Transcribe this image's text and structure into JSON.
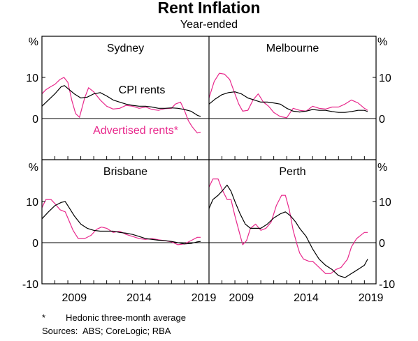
{
  "title": "Rent Inflation",
  "subtitle": "Year-ended",
  "footnote": {
    "marker": "*",
    "text": "Hedonic three-month average"
  },
  "sources": {
    "label": "Sources:",
    "text": "ABS; CoreLogic; RBA"
  },
  "colors": {
    "cpi": "#000000",
    "advertised": "#e8288c"
  },
  "chart_data": {
    "type": "line",
    "x_tick_labels": [
      "2009",
      "2014",
      "2019"
    ],
    "x_range": [
      2007.0,
      2019.9
    ],
    "y_unit": "%",
    "y_range": [
      -10,
      20
    ],
    "y_tick_labels": [
      "10",
      "0",
      "-10"
    ],
    "series_labels": {
      "cpi": "CPI rents",
      "advertised": "Advertised rents*"
    },
    "panels": [
      {
        "name": "Sydney",
        "cpi": {
          "x": [
            2007.0,
            2007.5,
            2008.0,
            2008.5,
            2008.75,
            2009.0,
            2009.5,
            2010.0,
            2010.5,
            2011.0,
            2011.5,
            2012.0,
            2012.5,
            2013.0,
            2013.5,
            2014.0,
            2014.5,
            2015.0,
            2015.5,
            2016.0,
            2016.5,
            2017.0,
            2017.5,
            2018.0,
            2018.5,
            2019.0,
            2019.25
          ],
          "y": [
            3.0,
            4.5,
            6.0,
            7.8,
            8.0,
            7.3,
            6.0,
            5.0,
            5.2,
            6.0,
            6.3,
            5.5,
            4.5,
            4.0,
            3.5,
            3.2,
            3.0,
            3.0,
            2.8,
            2.5,
            2.5,
            2.6,
            2.5,
            2.2,
            1.8,
            0.8,
            0.5
          ]
        },
        "advertised": {
          "x": [
            2007.0,
            2007.3,
            2007.7,
            2008.0,
            2008.4,
            2008.7,
            2009.0,
            2009.3,
            2009.6,
            2009.9,
            2010.3,
            2010.6,
            2011.0,
            2011.5,
            2012.0,
            2012.5,
            2013.0,
            2013.5,
            2014.0,
            2014.5,
            2015.0,
            2015.5,
            2016.0,
            2016.5,
            2017.0,
            2017.3,
            2017.7,
            2018.0,
            2018.3,
            2018.6,
            2019.0,
            2019.25
          ],
          "y": [
            6.0,
            7.0,
            7.8,
            8.3,
            9.5,
            10.0,
            8.8,
            4.5,
            1.2,
            0.3,
            5.0,
            7.5,
            6.5,
            4.5,
            3.0,
            2.3,
            2.5,
            3.2,
            3.0,
            2.5,
            2.8,
            2.2,
            2.0,
            2.4,
            2.5,
            3.5,
            4.0,
            2.0,
            -0.5,
            -2.0,
            -3.5,
            -3.3
          ]
        }
      },
      {
        "name": "Melbourne",
        "cpi": {
          "x": [
            2007.0,
            2007.5,
            2008.0,
            2008.5,
            2009.0,
            2009.5,
            2010.0,
            2010.5,
            2011.0,
            2011.5,
            2012.0,
            2012.5,
            2013.0,
            2013.5,
            2014.0,
            2014.5,
            2015.0,
            2015.5,
            2016.0,
            2016.5,
            2017.0,
            2017.5,
            2018.0,
            2018.5,
            2019.0,
            2019.25
          ],
          "y": [
            3.5,
            4.8,
            5.8,
            6.3,
            6.5,
            6.0,
            5.0,
            4.5,
            4.0,
            4.0,
            3.8,
            3.5,
            2.5,
            1.8,
            1.6,
            1.8,
            2.2,
            2.0,
            2.0,
            1.7,
            1.5,
            1.5,
            1.7,
            2.0,
            2.0,
            1.7
          ]
        },
        "advertised": {
          "x": [
            2007.0,
            2007.4,
            2007.8,
            2008.2,
            2008.6,
            2009.0,
            2009.3,
            2009.6,
            2010.0,
            2010.4,
            2010.8,
            2011.2,
            2011.6,
            2012.0,
            2012.5,
            2013.0,
            2013.5,
            2014.0,
            2014.5,
            2015.0,
            2015.5,
            2016.0,
            2016.5,
            2017.0,
            2017.5,
            2018.0,
            2018.5,
            2019.0,
            2019.25
          ],
          "y": [
            5.0,
            9.0,
            11.0,
            10.8,
            9.5,
            6.0,
            3.5,
            1.8,
            2.0,
            4.5,
            6.0,
            4.0,
            3.0,
            1.5,
            0.5,
            0.2,
            2.5,
            2.0,
            1.8,
            3.0,
            2.5,
            2.3,
            2.8,
            2.8,
            3.5,
            4.5,
            3.8,
            2.5,
            2.0
          ]
        }
      },
      {
        "name": "Brisbane",
        "cpi": {
          "x": [
            2007.0,
            2007.5,
            2008.0,
            2008.5,
            2008.8,
            2009.0,
            2009.5,
            2010.0,
            2010.5,
            2011.0,
            2011.5,
            2012.0,
            2012.5,
            2013.0,
            2013.5,
            2014.0,
            2014.5,
            2015.0,
            2015.5,
            2016.0,
            2016.5,
            2017.0,
            2017.5,
            2018.0,
            2018.5,
            2019.0,
            2019.25
          ],
          "y": [
            5.8,
            7.5,
            9.0,
            9.8,
            10.0,
            9.0,
            6.5,
            4.5,
            3.5,
            3.0,
            2.8,
            2.8,
            2.8,
            2.5,
            2.3,
            2.0,
            1.5,
            1.0,
            0.8,
            0.6,
            0.5,
            0.3,
            0.0,
            -0.3,
            -0.2,
            0.2,
            0.3
          ]
        },
        "advertised": {
          "x": [
            2007.0,
            2007.3,
            2007.7,
            2008.0,
            2008.4,
            2008.8,
            2009.0,
            2009.4,
            2009.8,
            2010.3,
            2010.8,
            2011.2,
            2011.6,
            2012.0,
            2012.5,
            2013.0,
            2013.5,
            2014.0,
            2014.5,
            2015.0,
            2015.5,
            2016.0,
            2016.5,
            2017.0,
            2017.5,
            2018.0,
            2018.5,
            2019.0,
            2019.25
          ],
          "y": [
            8.5,
            10.5,
            10.5,
            9.5,
            8.0,
            7.5,
            6.0,
            3.0,
            1.0,
            1.0,
            1.8,
            3.2,
            3.8,
            3.5,
            2.5,
            2.8,
            2.0,
            1.5,
            1.0,
            0.8,
            1.0,
            0.7,
            0.5,
            0.2,
            -0.5,
            -0.3,
            0.5,
            1.3,
            1.3
          ]
        }
      },
      {
        "name": "Perth",
        "cpi": {
          "x": [
            2007.0,
            2007.3,
            2007.7,
            2008.0,
            2008.4,
            2008.7,
            2009.0,
            2009.4,
            2009.8,
            2010.2,
            2010.6,
            2011.0,
            2011.5,
            2012.0,
            2012.5,
            2012.9,
            2013.3,
            2013.7,
            2014.0,
            2014.5,
            2015.0,
            2015.5,
            2016.0,
            2016.5,
            2017.0,
            2017.5,
            2018.0,
            2018.5,
            2019.0,
            2019.25
          ],
          "y": [
            8.3,
            10.5,
            11.5,
            12.5,
            14.0,
            12.5,
            10.0,
            7.0,
            4.5,
            3.5,
            3.5,
            3.5,
            4.5,
            6.0,
            7.0,
            7.5,
            6.5,
            5.0,
            3.5,
            1.5,
            -1.5,
            -4.0,
            -5.5,
            -6.5,
            -8.0,
            -8.5,
            -7.5,
            -6.5,
            -5.5,
            -4.0
          ]
        },
        "advertised": {
          "x": [
            2007.0,
            2007.3,
            2007.7,
            2008.0,
            2008.4,
            2008.7,
            2009.0,
            2009.3,
            2009.6,
            2009.9,
            2010.2,
            2010.6,
            2011.0,
            2011.4,
            2011.8,
            2012.2,
            2012.6,
            2012.9,
            2013.2,
            2013.5,
            2013.8,
            2014.0,
            2014.3,
            2014.7,
            2015.0,
            2015.5,
            2016.0,
            2016.4,
            2016.8,
            2017.2,
            2017.7,
            2018.0,
            2018.4,
            2018.8,
            2019.0,
            2019.25
          ],
          "y": [
            13.5,
            15.5,
            15.5,
            13.0,
            10.5,
            10.5,
            6.5,
            3.0,
            -0.5,
            0.5,
            3.5,
            4.5,
            3.0,
            3.5,
            5.0,
            9.0,
            11.5,
            11.5,
            8.0,
            3.0,
            -0.5,
            -2.5,
            -4.0,
            -4.5,
            -4.5,
            -6.0,
            -7.5,
            -7.5,
            -6.5,
            -6.0,
            -4.0,
            -1.0,
            1.0,
            2.0,
            2.5,
            2.5
          ]
        }
      }
    ]
  }
}
